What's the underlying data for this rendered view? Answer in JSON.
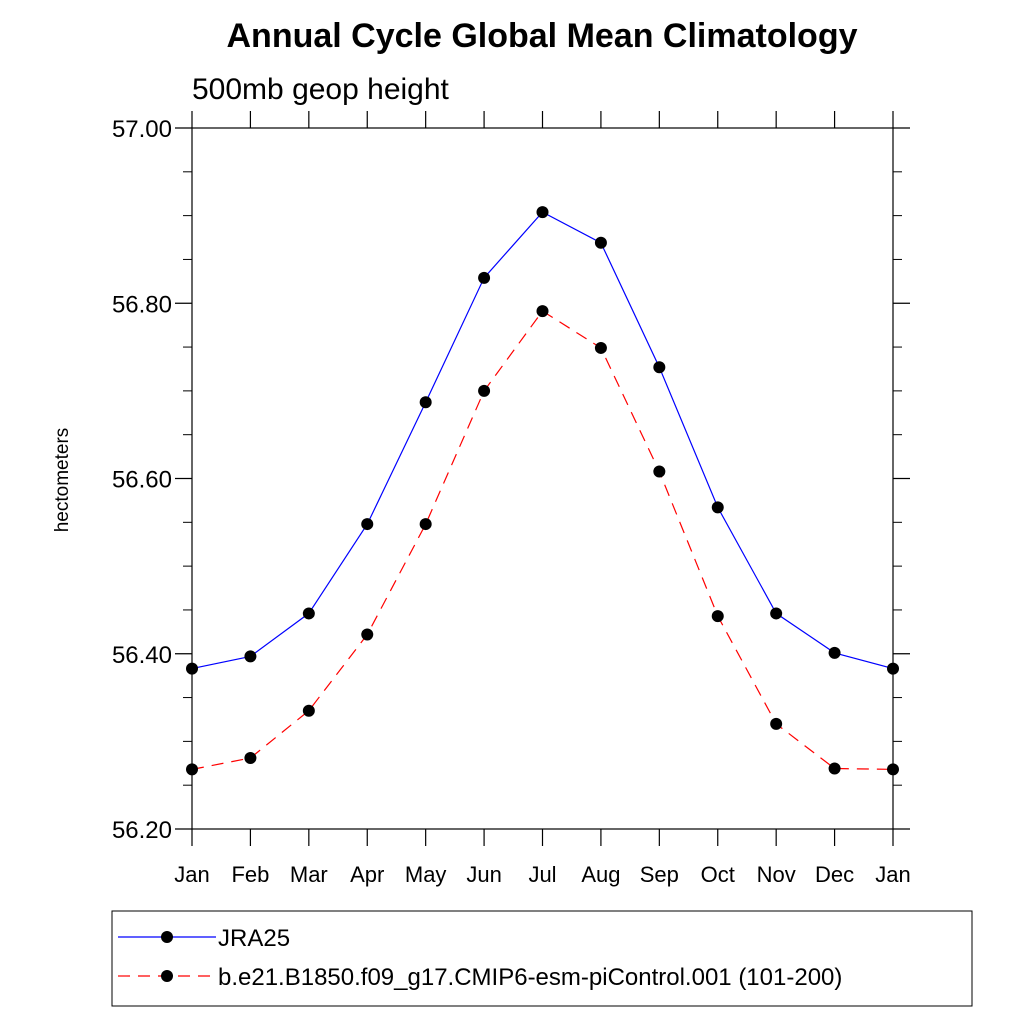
{
  "chart_data": {
    "type": "line",
    "title": "Annual Cycle Global Mean Climatology",
    "subtitle": "500mb geop height",
    "ylabel": "hectometers",
    "xlabel": "",
    "categories": [
      "Jan",
      "Feb",
      "Mar",
      "Apr",
      "May",
      "Jun",
      "Jul",
      "Aug",
      "Sep",
      "Oct",
      "Nov",
      "Dec",
      "Jan"
    ],
    "ylim": [
      56.2,
      57.0
    ],
    "yticks": [
      "56.20",
      "56.40",
      "56.60",
      "56.80",
      "57.00"
    ],
    "minor_ytick_step": 0.05,
    "grid": false,
    "legend_position": "bottom",
    "series": [
      {
        "name": "JRA25",
        "color": "#0000ff",
        "line_style": "solid",
        "marker": "filled-circle",
        "values": [
          56.383,
          56.397,
          56.446,
          56.548,
          56.687,
          56.829,
          56.904,
          56.869,
          56.727,
          56.567,
          56.446,
          56.401,
          56.383
        ]
      },
      {
        "name": "b.e21.B1850.f09_g17.CMIP6-esm-piControl.001 (101-200)",
        "color": "#ff0000",
        "line_style": "dashed",
        "marker": "filled-circle",
        "values": [
          56.268,
          56.281,
          56.335,
          56.422,
          56.548,
          56.7,
          56.791,
          56.749,
          56.608,
          56.443,
          56.32,
          56.269,
          56.268
        ]
      }
    ]
  }
}
